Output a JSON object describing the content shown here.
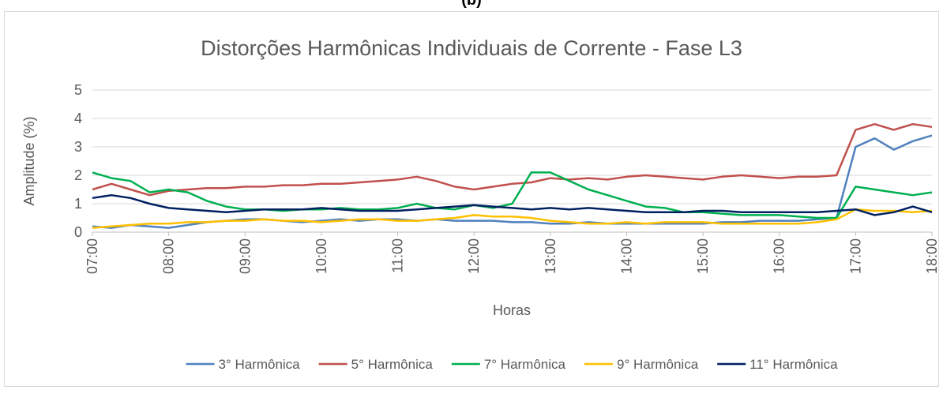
{
  "chart_data": {
    "type": "line",
    "caption": "(b)",
    "title": "Distorções Harmônicas Individuais de Corrente - Fase L3",
    "x_label": "Horas",
    "y_label": "Amplitude (%)",
    "x": [
      7,
      7.25,
      7.5,
      7.75,
      8,
      8.25,
      8.5,
      8.75,
      9,
      9.25,
      9.5,
      9.75,
      10,
      10.25,
      10.5,
      10.75,
      11,
      11.25,
      11.5,
      11.75,
      12,
      12.25,
      12.5,
      12.75,
      13,
      13.25,
      13.5,
      13.75,
      14,
      14.25,
      14.5,
      14.75,
      15,
      15.25,
      15.5,
      15.75,
      16,
      16.25,
      16.5,
      16.75,
      17,
      17.25,
      17.5,
      17.75,
      18
    ],
    "xlim": [
      7,
      18
    ],
    "xticks": [
      {
        "value": 7,
        "label": "07:00"
      },
      {
        "value": 8,
        "label": "08:00"
      },
      {
        "value": 9,
        "label": "09:00"
      },
      {
        "value": 10,
        "label": "10:00"
      },
      {
        "value": 11,
        "label": "11:00"
      },
      {
        "value": 12,
        "label": "12:00"
      },
      {
        "value": 13,
        "label": "13:00"
      },
      {
        "value": 14,
        "label": "14:00"
      },
      {
        "value": 15,
        "label": "15:00"
      },
      {
        "value": 16,
        "label": "16:00"
      },
      {
        "value": 17,
        "label": "17:00"
      },
      {
        "value": 18,
        "label": "18:00"
      }
    ],
    "ylim": [
      0,
      5
    ],
    "yticks": [
      0,
      1,
      2,
      3,
      4,
      5
    ],
    "grid": true,
    "legend": "bottom",
    "series": [
      {
        "name": "3° Harmônica",
        "color": "#4f81bd",
        "values": [
          0.2,
          0.15,
          0.25,
          0.2,
          0.15,
          0.25,
          0.35,
          0.4,
          0.45,
          0.45,
          0.4,
          0.35,
          0.4,
          0.45,
          0.4,
          0.45,
          0.45,
          0.4,
          0.45,
          0.4,
          0.4,
          0.4,
          0.35,
          0.35,
          0.3,
          0.3,
          0.35,
          0.3,
          0.3,
          0.3,
          0.3,
          0.3,
          0.3,
          0.35,
          0.35,
          0.4,
          0.4,
          0.4,
          0.45,
          0.5,
          3.0,
          3.3,
          2.9,
          3.2,
          3.4
        ]
      },
      {
        "name": "5° Harmônica",
        "color": "#c0504d",
        "values": [
          1.5,
          1.7,
          1.5,
          1.3,
          1.45,
          1.5,
          1.55,
          1.55,
          1.6,
          1.6,
          1.65,
          1.65,
          1.7,
          1.7,
          1.75,
          1.8,
          1.85,
          1.95,
          1.8,
          1.6,
          1.5,
          1.6,
          1.7,
          1.75,
          1.9,
          1.85,
          1.9,
          1.85,
          1.95,
          2.0,
          1.95,
          1.9,
          1.85,
          1.95,
          2.0,
          1.95,
          1.9,
          1.95,
          1.95,
          2.0,
          3.6,
          3.8,
          3.6,
          3.8,
          3.7
        ]
      },
      {
        "name": "7° Harmônica",
        "color": "#00b050",
        "values": [
          2.1,
          1.9,
          1.8,
          1.4,
          1.5,
          1.4,
          1.1,
          0.9,
          0.8,
          0.8,
          0.75,
          0.8,
          0.8,
          0.85,
          0.8,
          0.8,
          0.85,
          1.0,
          0.85,
          0.8,
          0.95,
          0.85,
          1.0,
          2.1,
          2.1,
          1.8,
          1.5,
          1.3,
          1.1,
          0.9,
          0.85,
          0.7,
          0.7,
          0.65,
          0.6,
          0.6,
          0.6,
          0.55,
          0.5,
          0.5,
          1.6,
          1.5,
          1.4,
          1.3,
          1.4
        ]
      },
      {
        "name": "9° Harmônica",
        "color": "#ffc000",
        "values": [
          0.15,
          0.2,
          0.25,
          0.3,
          0.3,
          0.35,
          0.35,
          0.4,
          0.4,
          0.45,
          0.4,
          0.4,
          0.35,
          0.4,
          0.45,
          0.45,
          0.4,
          0.4,
          0.45,
          0.5,
          0.6,
          0.55,
          0.55,
          0.5,
          0.4,
          0.35,
          0.3,
          0.3,
          0.35,
          0.3,
          0.35,
          0.35,
          0.35,
          0.3,
          0.3,
          0.3,
          0.3,
          0.3,
          0.35,
          0.45,
          0.8,
          0.75,
          0.75,
          0.7,
          0.75
        ]
      },
      {
        "name": "11° Harmônica",
        "color": "#002060",
        "values": [
          1.2,
          1.3,
          1.2,
          1.0,
          0.85,
          0.8,
          0.75,
          0.7,
          0.75,
          0.8,
          0.8,
          0.8,
          0.85,
          0.8,
          0.75,
          0.75,
          0.75,
          0.8,
          0.85,
          0.9,
          0.95,
          0.9,
          0.85,
          0.8,
          0.85,
          0.8,
          0.85,
          0.8,
          0.75,
          0.7,
          0.7,
          0.7,
          0.75,
          0.75,
          0.7,
          0.7,
          0.7,
          0.7,
          0.7,
          0.75,
          0.8,
          0.6,
          0.7,
          0.9,
          0.7
        ]
      }
    ]
  }
}
